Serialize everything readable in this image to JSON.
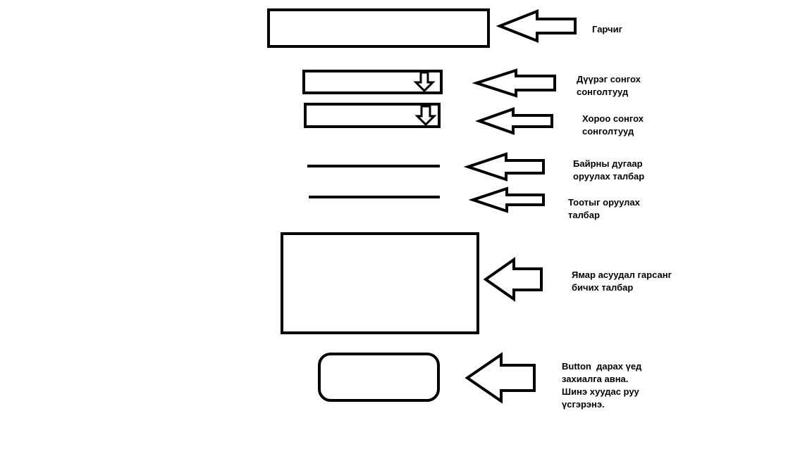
{
  "stroke_color": "#000000",
  "background_color": "#ffffff",
  "annotations": {
    "title": [
      "Гарчиг"
    ],
    "district_select": [
      "Дүүрэг сонгох",
      "сонголтууд"
    ],
    "khoroo_select": [
      "Хороо сонгох",
      "сонголтууд"
    ],
    "building_number": [
      "Байрны дугаар",
      "оруулах талбар"
    ],
    "apartment_number": [
      "Тоотыг оруулах",
      "талбар"
    ],
    "problem_description": [
      "Ямар асуудал гарсанг",
      "бичих талбар"
    ],
    "submit_button": [
      "Button  дарах үед",
      "захиалга авна.",
      "Шинэ хуудас руу",
      "үсгэрэнэ."
    ]
  }
}
